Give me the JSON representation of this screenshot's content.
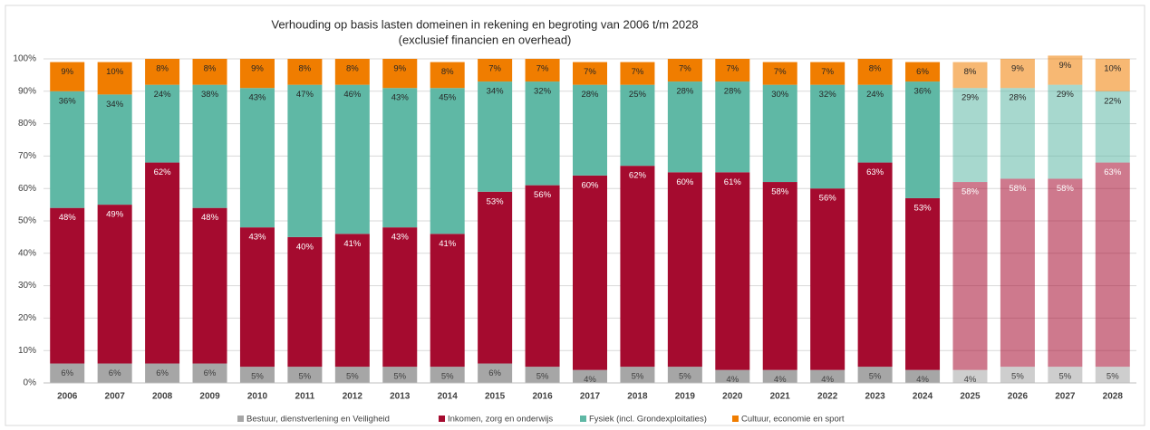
{
  "chart_data": {
    "type": "stacked_bar",
    "title": "Verhouding op basis lasten domeinen in rekening en begroting van 2006 t/m 2028",
    "subtitle": "(exclusief financien en overhead)",
    "categories": [
      "2006",
      "2007",
      "2008",
      "2009",
      "2010",
      "2011",
      "2012",
      "2013",
      "2014",
      "2015",
      "2016",
      "2017",
      "2018",
      "2019",
      "2020",
      "2021",
      "2022",
      "2023",
      "2024",
      "2025",
      "2026",
      "2027",
      "2028"
    ],
    "bar_opacity": [
      1,
      1,
      1,
      1,
      1,
      1,
      1,
      1,
      1,
      1,
      1,
      1,
      1,
      1,
      1,
      1,
      1,
      1,
      1,
      0.55,
      0.55,
      0.55,
      0.55
    ],
    "series": [
      {
        "name": "Bestuur, dienstverlening en Veiligheid",
        "color": "#a6a6a6",
        "label_color": "#404040",
        "values": [
          6,
          6,
          6,
          6,
          5,
          5,
          5,
          5,
          5,
          6,
          5,
          4,
          5,
          5,
          4,
          4,
          4,
          5,
          4,
          4,
          5,
          5,
          5
        ],
        "value_labels": [
          "6%",
          "6%",
          "6%",
          "6%",
          "5%",
          "5%",
          "5%",
          "5%",
          "5%",
          "6%",
          "5%",
          "4%",
          "5%",
          "5%",
          "4%",
          "4%",
          "4%",
          "5%",
          "4%",
          "4%",
          "5%",
          "5%",
          "5%"
        ]
      },
      {
        "name": "Inkomen, zorg en onderwijs",
        "color": "#a50b2f",
        "label_color": "#ffffff",
        "values": [
          48,
          49,
          62,
          48,
          43,
          40,
          41,
          43,
          41,
          53,
          56,
          60,
          62,
          60,
          61,
          58,
          56,
          63,
          53,
          58,
          58,
          58,
          63
        ],
        "value_labels": [
          "48%",
          "49%",
          "62%",
          "48%",
          "43%",
          "40%",
          "41%",
          "43%",
          "41%",
          "53%",
          "56%",
          "60%",
          "62%",
          "60%",
          "61%",
          "58%",
          "56%",
          "63%",
          "53%",
          "58%",
          "58%",
          "58%",
          "63%"
        ]
      },
      {
        "name": "Fysiek (incl. Grondexploitaties)",
        "color": "#5fb8a5",
        "label_color": "#262626",
        "values": [
          36,
          34,
          24,
          38,
          43,
          47,
          46,
          43,
          45,
          34,
          32,
          28,
          25,
          28,
          28,
          30,
          32,
          24,
          36,
          29,
          28,
          29,
          22
        ],
        "value_labels": [
          "36%",
          "34%",
          "24%",
          "38%",
          "43%",
          "47%",
          "46%",
          "43%",
          "45%",
          "34%",
          "32%",
          "28%",
          "25%",
          "28%",
          "28%",
          "30%",
          "32%",
          "24%",
          "36%",
          "29%",
          "28%",
          "29%",
          "22%"
        ]
      },
      {
        "name": "Cultuur, economie en sport",
        "color": "#f07d00",
        "label_color": "#262626",
        "values": [
          9,
          10,
          8,
          8,
          9,
          8,
          8,
          9,
          8,
          7,
          7,
          7,
          7,
          7,
          7,
          7,
          7,
          8,
          6,
          8,
          9,
          9,
          10
        ],
        "value_labels": [
          "9%",
          "10%",
          "8%",
          "8%",
          "9%",
          "8%",
          "8%",
          "9%",
          "8%",
          "7%",
          "7%",
          "7%",
          "7%",
          "7%",
          "7%",
          "7%",
          "7%",
          "8%",
          "6%",
          "8%",
          "9%",
          "9%",
          "10%"
        ]
      }
    ],
    "ylim": [
      0,
      100
    ],
    "yticks": [
      {
        "value": 0,
        "label": "0%"
      },
      {
        "value": 10,
        "label": "10%"
      },
      {
        "value": 20,
        "label": "20%"
      },
      {
        "value": 30,
        "label": "30%"
      },
      {
        "value": 40,
        "label": "40%"
      },
      {
        "value": 50,
        "label": "50%"
      },
      {
        "value": 60,
        "label": "60%"
      },
      {
        "value": 70,
        "label": "70%"
      },
      {
        "value": 80,
        "label": "80%"
      },
      {
        "value": 90,
        "label": "90%"
      },
      {
        "value": 100,
        "label": "100%"
      }
    ],
    "grid": true
  }
}
